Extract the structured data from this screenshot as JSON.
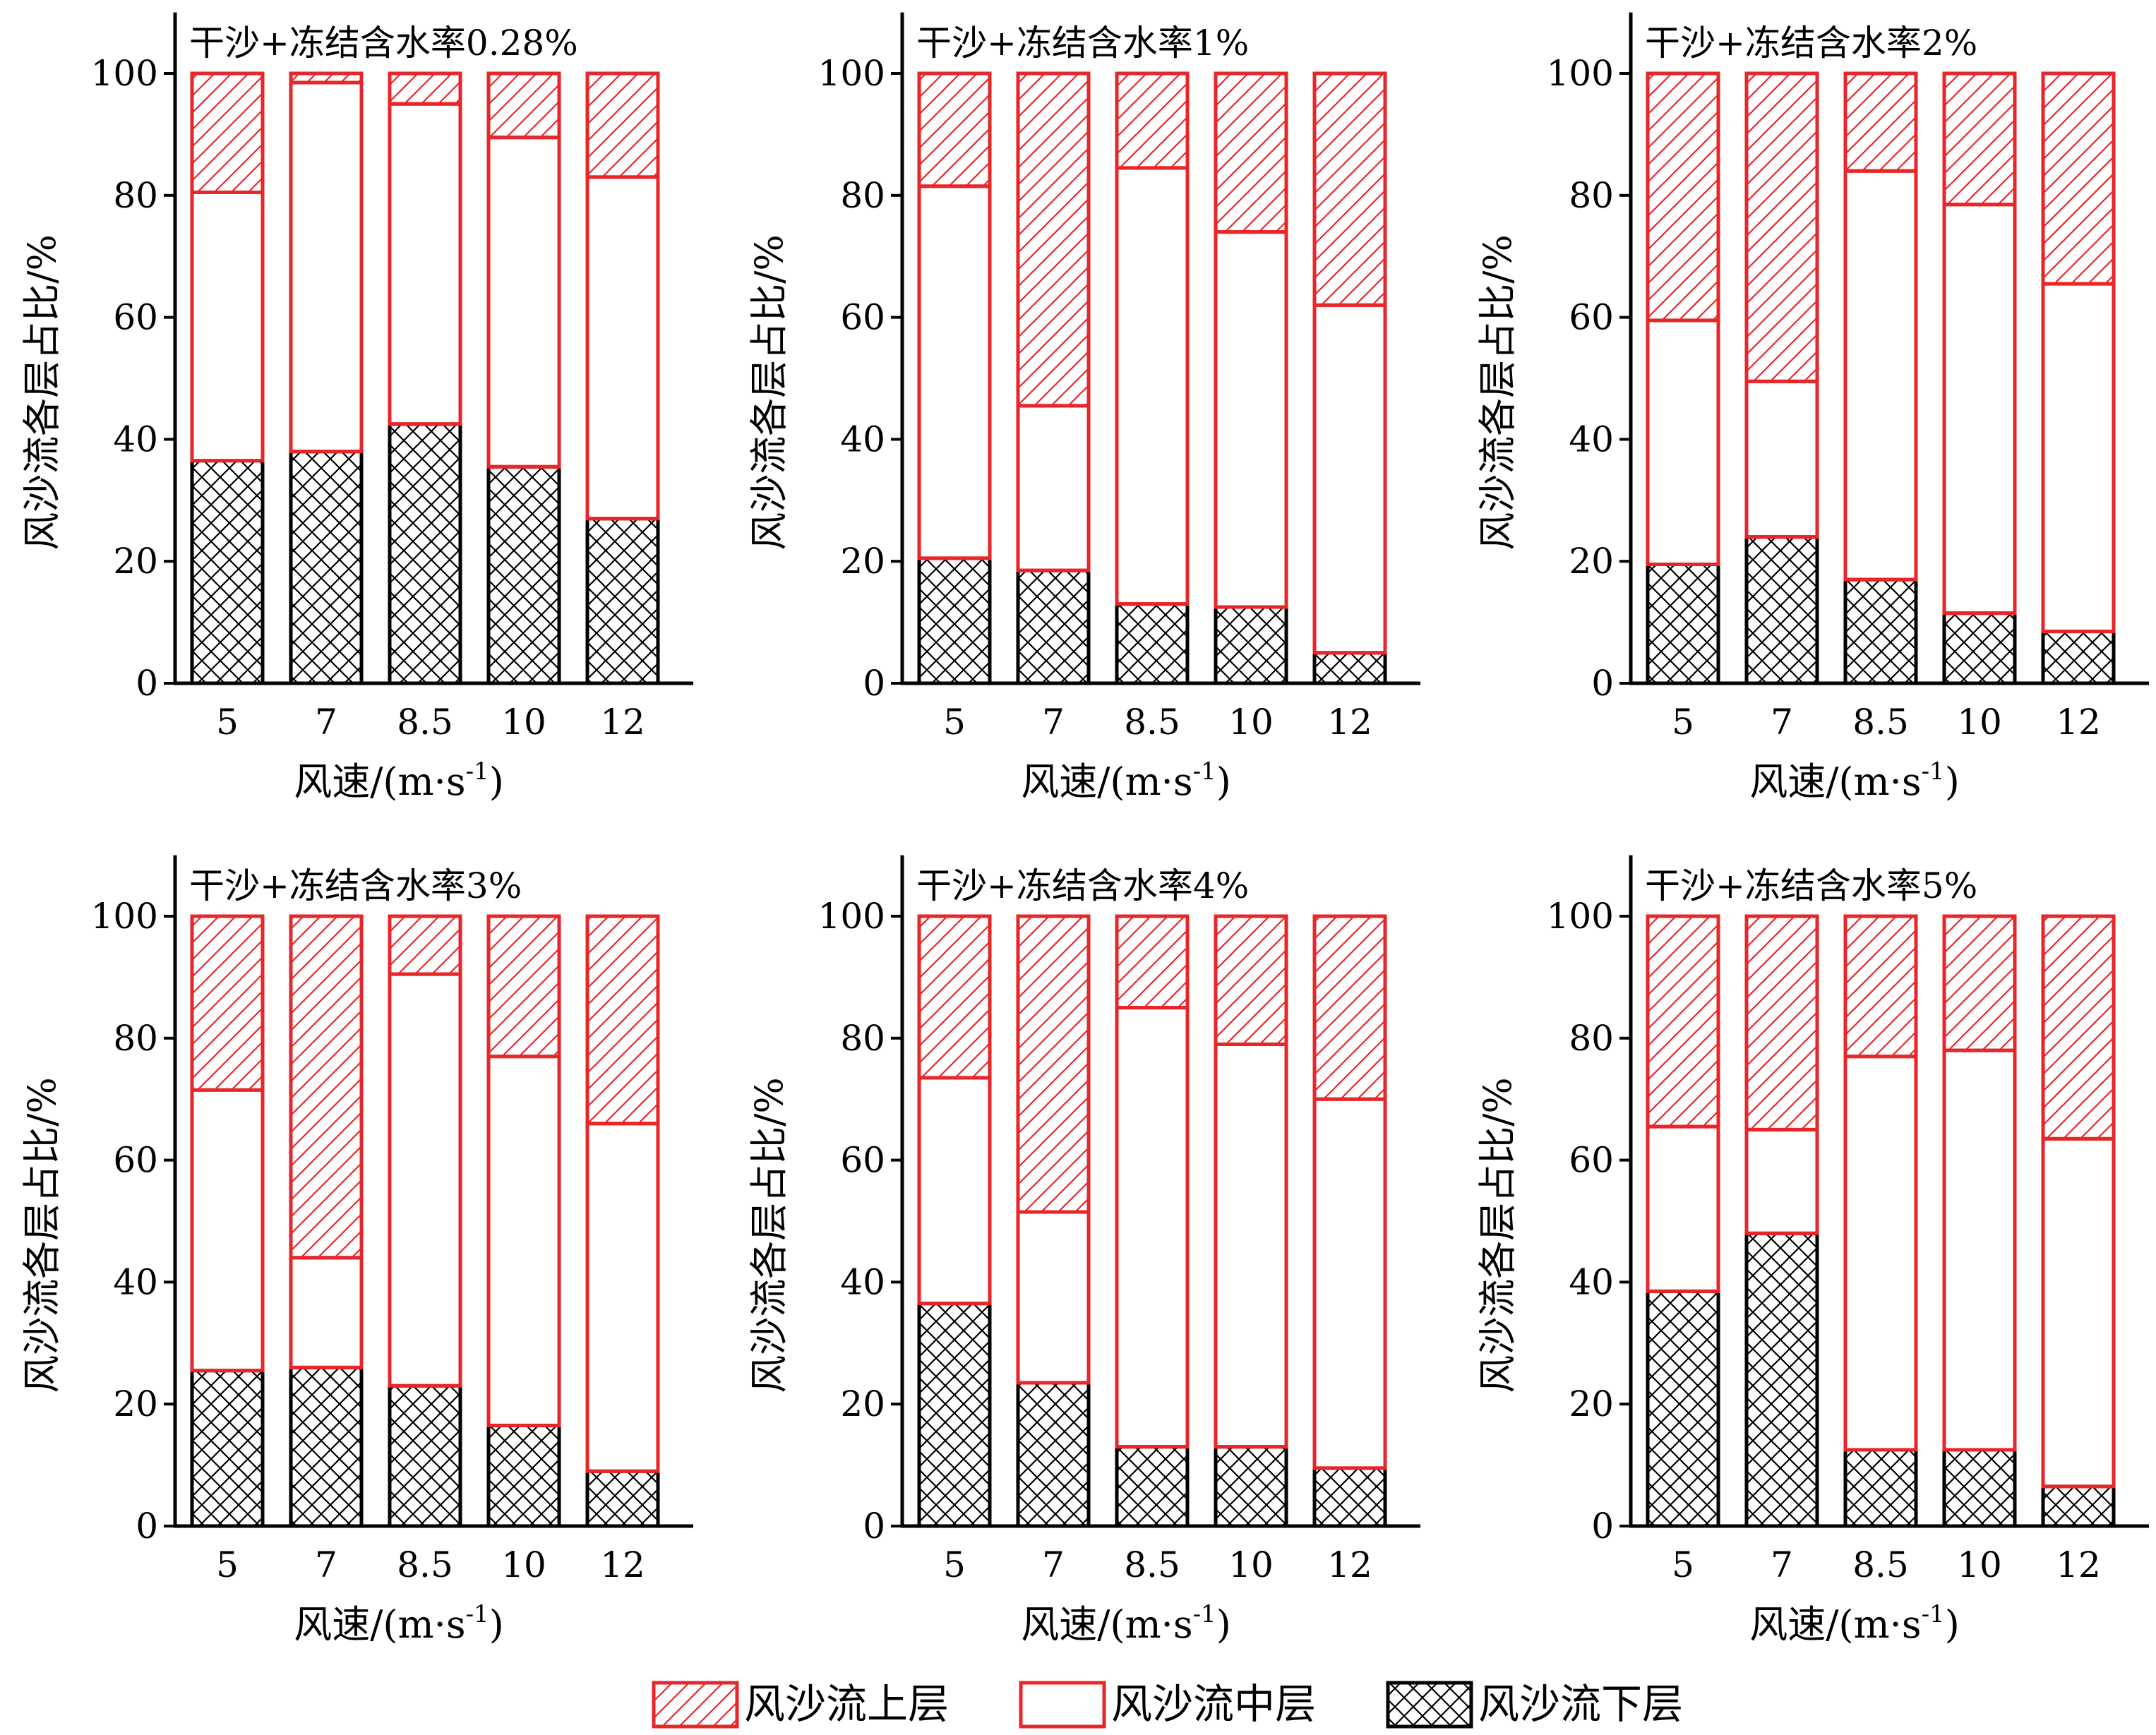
{
  "figure": {
    "xlabel": "风速/(m·s",
    "xlabel_sup": "-1",
    "xlabel_end": ")",
    "ylabel": "风沙流各层占比/%"
  },
  "colors": {
    "bar_edge": "#e8262a",
    "lower_fill": "#000000",
    "axis": "#000000"
  },
  "legend": {
    "items": [
      {
        "label": "风沙流上层",
        "pattern": "hatch-diagonal"
      },
      {
        "label": "风沙流中层",
        "pattern": "none"
      },
      {
        "label": "风沙流下层",
        "pattern": "crosshatch"
      }
    ]
  },
  "chart_data": [
    {
      "type": "bar",
      "stacked": true,
      "title": "干沙+冻结含水率0.28%",
      "categories": [
        "5",
        "7",
        "8.5",
        "10",
        "12"
      ],
      "xlabel": "风速/(m·s-1)",
      "ylabel": "风沙流各层占比/%",
      "ylim": [
        0,
        110
      ],
      "yticks": [
        0,
        20,
        40,
        60,
        80,
        100
      ],
      "series": [
        {
          "name": "风沙流下层",
          "values": [
            36.5,
            38,
            42.5,
            35.5,
            27
          ]
        },
        {
          "name": "风沙流中层",
          "values": [
            44,
            60.5,
            52.5,
            54,
            56
          ]
        },
        {
          "name": "风沙流上层",
          "values": [
            19.5,
            1.5,
            5,
            10.5,
            17
          ]
        }
      ]
    },
    {
      "type": "bar",
      "stacked": true,
      "title": "干沙+冻结含水率1%",
      "categories": [
        "5",
        "7",
        "8.5",
        "10",
        "12"
      ],
      "xlabel": "风速/(m·s-1)",
      "ylabel": "风沙流各层占比/%",
      "ylim": [
        0,
        110
      ],
      "yticks": [
        0,
        20,
        40,
        60,
        80,
        100
      ],
      "series": [
        {
          "name": "风沙流下层",
          "values": [
            20.5,
            18.5,
            13,
            12.5,
            5
          ]
        },
        {
          "name": "风沙流中层",
          "values": [
            61,
            27,
            71.5,
            61.5,
            57
          ]
        },
        {
          "name": "风沙流上层",
          "values": [
            18.5,
            54.5,
            15.5,
            26,
            38
          ]
        }
      ]
    },
    {
      "type": "bar",
      "stacked": true,
      "title": "干沙+冻结含水率2%",
      "categories": [
        "5",
        "7",
        "8.5",
        "10",
        "12"
      ],
      "xlabel": "风速/(m·s-1)",
      "ylabel": "风沙流各层占比/%",
      "ylim": [
        0,
        110
      ],
      "yticks": [
        0,
        20,
        40,
        60,
        80,
        100
      ],
      "series": [
        {
          "name": "风沙流下层",
          "values": [
            19.5,
            24,
            17,
            11.5,
            8.5
          ]
        },
        {
          "name": "风沙流中层",
          "values": [
            40,
            25.5,
            67,
            67,
            57
          ]
        },
        {
          "name": "风沙流上层",
          "values": [
            40.5,
            50.5,
            16,
            21.5,
            34.5
          ]
        }
      ]
    },
    {
      "type": "bar",
      "stacked": true,
      "title": "干沙+冻结含水率3%",
      "categories": [
        "5",
        "7",
        "8.5",
        "10",
        "12"
      ],
      "xlabel": "风速/(m·s-1)",
      "ylabel": "风沙流各层占比/%",
      "ylim": [
        0,
        110
      ],
      "yticks": [
        0,
        20,
        40,
        60,
        80,
        100
      ],
      "series": [
        {
          "name": "风沙流下层",
          "values": [
            25.5,
            26,
            23,
            16.5,
            9
          ]
        },
        {
          "name": "风沙流中层",
          "values": [
            46,
            18,
            67.5,
            60.5,
            57
          ]
        },
        {
          "name": "风沙流上层",
          "values": [
            28.5,
            56,
            9.5,
            23,
            34
          ]
        }
      ]
    },
    {
      "type": "bar",
      "stacked": true,
      "title": "干沙+冻结含水率4%",
      "categories": [
        "5",
        "7",
        "8.5",
        "10",
        "12"
      ],
      "xlabel": "风速/(m·s-1)",
      "ylabel": "风沙流各层占比/%",
      "ylim": [
        0,
        110
      ],
      "yticks": [
        0,
        20,
        40,
        60,
        80,
        100
      ],
      "series": [
        {
          "name": "风沙流下层",
          "values": [
            36.5,
            23.5,
            13,
            13,
            9.5
          ]
        },
        {
          "name": "风沙流中层",
          "values": [
            37,
            28,
            72,
            66,
            60.5
          ]
        },
        {
          "name": "风沙流上层",
          "values": [
            26.5,
            48.5,
            15,
            21,
            30
          ]
        }
      ]
    },
    {
      "type": "bar",
      "stacked": true,
      "title": "干沙+冻结含水率5%",
      "categories": [
        "5",
        "7",
        "8.5",
        "10",
        "12"
      ],
      "xlabel": "风速/(m·s-1)",
      "ylabel": "风沙流各层占比/%",
      "ylim": [
        0,
        110
      ],
      "yticks": [
        0,
        20,
        40,
        60,
        80,
        100
      ],
      "series": [
        {
          "name": "风沙流下层",
          "values": [
            38.5,
            48,
            12.5,
            12.5,
            6.5
          ]
        },
        {
          "name": "风沙流中层",
          "values": [
            27,
            17,
            64.5,
            65.5,
            57
          ]
        },
        {
          "name": "风沙流上层",
          "values": [
            34.5,
            35,
            23,
            22,
            36.5
          ]
        }
      ]
    }
  ]
}
